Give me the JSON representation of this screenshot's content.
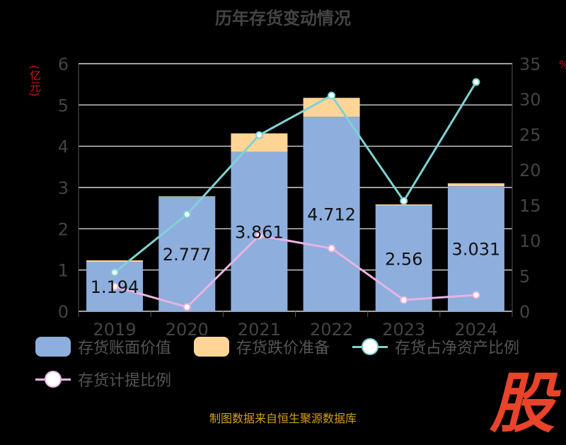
{
  "title": "历年存货变动情况",
  "left_unit": "(亿元)",
  "right_unit": "%",
  "footer": "制图数据来自恒生聚源数据库",
  "watermark": "股",
  "colors": {
    "bar_book": "#8eaede",
    "bar_reserve": "#ffd596",
    "line_ratio": "#7fd2d4",
    "line_provision": "#e8b4e0",
    "grid": "#ffffff",
    "axis_text": "#444444"
  },
  "legend": {
    "book_value": "存货账面价值",
    "reserve": "存货跌价准备",
    "net_asset_ratio": "存货占净资产比例",
    "provision_ratio": "存货计提比例"
  },
  "chart_data": {
    "type": "bar",
    "title": "历年存货变动情况",
    "categories": [
      "2019",
      "2020",
      "2021",
      "2022",
      "2023",
      "2024"
    ],
    "ylabel": "(亿元)",
    "y2label": "%",
    "ylim": [
      0,
      6
    ],
    "y2lim": [
      0,
      35
    ],
    "yticks": [
      0,
      1,
      2,
      3,
      4,
      5,
      6
    ],
    "y2ticks": [
      0,
      5,
      10,
      15,
      20,
      25,
      30,
      35
    ],
    "grid": true,
    "legend_position": "bottom",
    "series": [
      {
        "name": "存货账面价值",
        "type": "bar",
        "stack": "inventory",
        "axis": "left",
        "values": [
          1.194,
          2.777,
          3.861,
          4.712,
          2.56,
          3.031
        ],
        "labels": [
          "1.194",
          "2.777",
          "3.861",
          "4.712",
          "2.56",
          "3.031"
        ]
      },
      {
        "name": "存货跌价准备",
        "type": "bar",
        "stack": "inventory",
        "axis": "left",
        "values": [
          0.04,
          0.01,
          0.45,
          0.46,
          0.03,
          0.07
        ]
      },
      {
        "name": "存货占净资产比例",
        "type": "line",
        "axis": "right",
        "values": [
          5.5,
          13.7,
          24.9,
          30.5,
          15.6,
          32.4
        ]
      },
      {
        "name": "存货计提比例",
        "type": "line",
        "axis": "right",
        "values": [
          3.5,
          0.6,
          10.7,
          8.9,
          1.6,
          2.3
        ]
      }
    ]
  }
}
